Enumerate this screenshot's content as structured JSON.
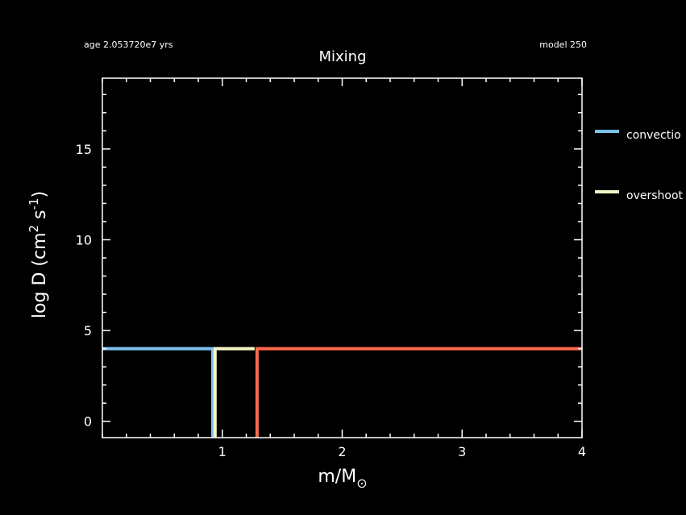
{
  "header": {
    "age_label": "age 2.053720e7 yrs",
    "model_label": "model 250"
  },
  "chart_data": {
    "type": "line",
    "title": "Mixing",
    "xlabel": "m/M",
    "xlabel_subscript": "⊙",
    "ylabel_main": "log D (cm",
    "ylabel_sup1": "2",
    "ylabel_mid": " s",
    "ylabel_sup2": "-1",
    "ylabel_end": ")",
    "xlim": [
      0,
      4
    ],
    "ylim": [
      -0.9,
      18.9
    ],
    "x_major_ticks": [
      1,
      2,
      3,
      4
    ],
    "x_major_labels": [
      "1",
      "2",
      "3",
      "4"
    ],
    "y_major_ticks": [
      0,
      5,
      10,
      15
    ],
    "y_major_labels": [
      "0",
      "5",
      "10",
      "15"
    ],
    "x_minor_step": 0.2,
    "y_minor_step": 1,
    "colors": {
      "convection": "#7ec0ee",
      "overshoot": "#f5f5c8",
      "third": "#ff6a4d",
      "axes": "#ffffff",
      "background": "#000000"
    },
    "series": [
      {
        "name": "convection",
        "color": "#7ec0ee",
        "points": [
          [
            0,
            4
          ],
          [
            0.92,
            4
          ],
          [
            0.92,
            -0.9
          ]
        ]
      },
      {
        "name": "overshoot",
        "color": "#f5f5c8",
        "points": [
          [
            0.94,
            -0.9
          ],
          [
            0.94,
            4
          ],
          [
            1.27,
            4
          ]
        ]
      },
      {
        "name": "",
        "color": "#ff6a4d",
        "points": [
          [
            1.29,
            -0.9
          ],
          [
            1.29,
            4
          ],
          [
            4,
            4
          ]
        ]
      }
    ],
    "legend": {
      "placement": "right",
      "entries": [
        {
          "label": "convectio",
          "color": "#7ec0ee"
        },
        {
          "label": "overshoot",
          "color": "#f5f5c8"
        }
      ]
    }
  }
}
